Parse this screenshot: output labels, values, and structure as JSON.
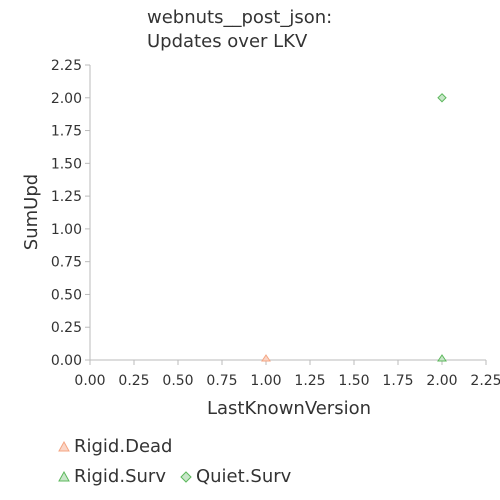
{
  "chart_data": {
    "type": "scatter",
    "title_lines": [
      "webnuts__post_json:",
      "Updates over LKV"
    ],
    "xlabel": "LastKnownVersion",
    "ylabel": "SumUpd",
    "xlim": [
      0,
      2.25
    ],
    "ylim": [
      0,
      2.25
    ],
    "x_ticks": [
      "0.00",
      "0.25",
      "0.50",
      "0.75",
      "1.00",
      "1.25",
      "1.50",
      "1.75",
      "2.00",
      "2.25"
    ],
    "y_ticks": [
      "0.00",
      "0.25",
      "0.50",
      "0.75",
      "1.00",
      "1.25",
      "1.50",
      "1.75",
      "2.00",
      "2.25"
    ],
    "grid": false,
    "legend_position": "bottom-left",
    "series": [
      {
        "name": "Rigid.Dead",
        "marker": "triangle",
        "color": "#f4a582",
        "points": [
          [
            1.0,
            0.0
          ]
        ]
      },
      {
        "name": "Rigid.Surv",
        "marker": "triangle",
        "color": "#5cb85c",
        "points": [
          [
            2.0,
            0.0
          ]
        ]
      },
      {
        "name": "Quiet.Surv",
        "marker": "diamond",
        "color": "#5cb85c",
        "points": [
          [
            2.0,
            2.0
          ]
        ]
      }
    ]
  }
}
